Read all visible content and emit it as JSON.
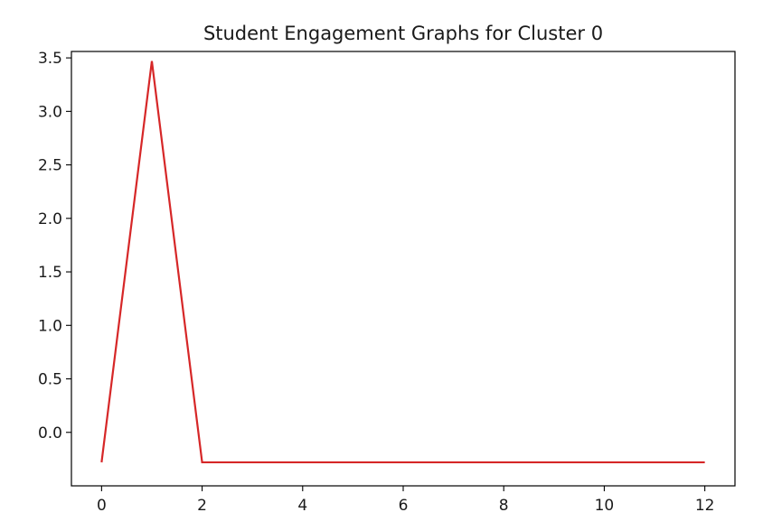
{
  "chart_data": {
    "type": "line",
    "title": "Student Engagement Graphs for Cluster 0",
    "xlabel": "",
    "ylabel": "",
    "xlim": [
      -0.6,
      12.6
    ],
    "ylim": [
      -0.5,
      3.56
    ],
    "x_ticks": [
      0,
      2,
      4,
      6,
      8,
      10,
      12
    ],
    "x_tick_labels": [
      "0",
      "2",
      "4",
      "6",
      "8",
      "10",
      "12"
    ],
    "y_ticks": [
      0.0,
      0.5,
      1.0,
      1.5,
      2.0,
      2.5,
      3.0,
      3.5
    ],
    "y_tick_labels": [
      "0.0",
      "0.5",
      "1.0",
      "1.5",
      "2.0",
      "2.5",
      "3.0",
      "3.5"
    ],
    "grid": false,
    "series": [
      {
        "color": "#d62728",
        "x": [
          0,
          1,
          2,
          3,
          4,
          5,
          6,
          7,
          8,
          9,
          10,
          11,
          12
        ],
        "y": [
          -0.28,
          3.47,
          -0.28,
          -0.28,
          -0.28,
          -0.28,
          -0.28,
          -0.28,
          -0.28,
          -0.28,
          -0.28,
          -0.28,
          -0.28
        ]
      }
    ]
  }
}
